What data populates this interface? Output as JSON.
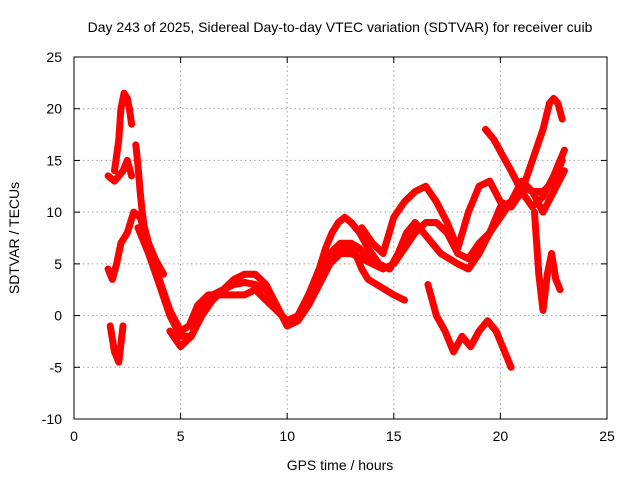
{
  "chart_data": {
    "type": "line",
    "title": "Day 243 of 2025, Sidereal Day-to-day VTEC variation (SDTVAR) for receiver cuib",
    "xlabel": "GPS time / hours",
    "ylabel": "SDTVAR / TECUs",
    "xlim": [
      0,
      25
    ],
    "ylim": [
      -10,
      25
    ],
    "xticks": [
      0,
      5,
      10,
      15,
      20,
      25
    ],
    "yticks": [
      -10,
      -5,
      0,
      5,
      10,
      15,
      20,
      25
    ],
    "grid": true,
    "color": "#ff0000",
    "series": [
      {
        "name": "s1",
        "x": [
          1.6,
          1.9,
          2.1,
          2.3,
          2.5,
          2.7
        ],
        "y": [
          13.5,
          13.0,
          13.5,
          14.0,
          15.0,
          13.5
        ]
      },
      {
        "name": "s2",
        "x": [
          1.9,
          2.1,
          2.2,
          2.35,
          2.5,
          2.6,
          2.7
        ],
        "y": [
          14.0,
          17.0,
          20.0,
          21.5,
          21.0,
          20.0,
          18.5
        ]
      },
      {
        "name": "s3",
        "x": [
          2.9,
          3.0,
          3.1,
          3.2,
          3.3,
          3.5,
          3.8,
          4.2
        ],
        "y": [
          16.5,
          14.5,
          12.0,
          10.0,
          8.5,
          7.0,
          5.5,
          4.0
        ]
      },
      {
        "name": "s4",
        "x": [
          1.6,
          1.8,
          2.0,
          2.2,
          2.5,
          2.8,
          3.1,
          3.5,
          4.0,
          4.5,
          5.0,
          5.4,
          5.8,
          6.3,
          7.0,
          7.6,
          8.0,
          8.5,
          9.0,
          9.5,
          10.0,
          10.5,
          11.0,
          11.5,
          12.0,
          12.5,
          13.0,
          13.4,
          13.8,
          14.2
        ],
        "y": [
          4.5,
          3.5,
          5.0,
          7.0,
          8.0,
          10.0,
          9.5,
          7.0,
          3.5,
          0.5,
          -1.5,
          -1.0,
          1.0,
          2.0,
          2.0,
          2.0,
          2.0,
          2.5,
          1.5,
          0.5,
          -0.5,
          0.0,
          1.5,
          3.5,
          6.0,
          7.0,
          7.0,
          6.5,
          5.5,
          5.0
        ]
      },
      {
        "name": "s5",
        "x": [
          3.0,
          3.5,
          4.0,
          4.5,
          5.0,
          5.5,
          6.0,
          6.5,
          7.0,
          7.5,
          8.0,
          8.5,
          9.0,
          9.5,
          10.0,
          10.5,
          11.0,
          11.5,
          12.0,
          12.3,
          12.6,
          12.9,
          13.2,
          13.5,
          13.8,
          14.2,
          14.6,
          15.0,
          15.5
        ],
        "y": [
          8.5,
          6.0,
          3.0,
          0.0,
          -2.0,
          -2.0,
          0.0,
          1.5,
          2.5,
          3.5,
          4.0,
          4.0,
          3.0,
          1.0,
          -1.0,
          -0.5,
          1.0,
          3.0,
          5.0,
          6.0,
          6.5,
          6.8,
          6.0,
          4.5,
          3.5,
          3.0,
          2.5,
          2.0,
          1.5
        ]
      },
      {
        "name": "s6",
        "x": [
          4.5,
          5.0,
          5.5,
          6.0,
          6.5,
          7.0,
          7.5,
          8.0,
          8.5,
          9.0,
          9.5,
          10.0,
          10.5,
          11.0,
          11.5,
          12.0,
          12.5,
          13.0,
          13.5,
          14.0,
          14.5,
          15.0,
          15.5,
          16.0,
          16.5,
          17.0,
          17.5,
          18.0,
          18.5,
          19.0,
          19.5,
          20.0,
          20.5,
          21.0,
          21.5,
          22.0,
          22.5,
          22.9
        ],
        "y": [
          -1.5,
          -3.0,
          -2.0,
          0.5,
          2.0,
          2.5,
          3.0,
          3.2,
          3.0,
          2.5,
          1.0,
          -1.0,
          -0.5,
          1.0,
          3.0,
          5.0,
          6.0,
          6.0,
          5.5,
          5.0,
          4.5,
          5.0,
          6.5,
          8.0,
          9.0,
          9.0,
          8.0,
          6.0,
          5.5,
          7.0,
          8.0,
          9.5,
          11.0,
          12.5,
          12.0,
          12.0,
          13.0,
          15.0
        ]
      },
      {
        "name": "s7",
        "x": [
          10.0,
          10.5,
          11.0,
          11.5,
          11.8,
          12.1,
          12.4,
          12.7,
          13.0,
          13.4,
          13.8,
          14.3,
          14.8,
          15.2,
          15.6,
          16.0,
          16.4,
          16.8,
          17.2,
          17.6,
          18.0,
          18.5,
          19.0,
          19.5,
          20.0,
          20.5,
          21.0,
          21.5,
          22.0,
          22.5,
          23.0
        ],
        "y": [
          -1.0,
          0.0,
          2.0,
          4.5,
          6.5,
          8.0,
          9.0,
          9.5,
          9.0,
          8.0,
          6.5,
          5.0,
          4.5,
          6.0,
          8.0,
          9.0,
          8.0,
          7.0,
          6.0,
          5.5,
          5.0,
          4.5,
          6.0,
          8.0,
          10.5,
          11.0,
          13.0,
          12.0,
          10.0,
          12.0,
          14.0
        ]
      },
      {
        "name": "s8",
        "x": [
          13.5,
          14.0,
          14.5,
          15.0,
          15.5,
          16.0,
          16.5,
          17.0,
          17.5,
          18.0,
          18.5,
          19.0,
          19.5,
          20.0,
          20.5,
          21.0,
          21.5,
          22.0,
          22.3,
          22.5,
          22.7,
          22.9
        ],
        "y": [
          8.5,
          7.0,
          6.0,
          9.5,
          11.0,
          12.0,
          12.5,
          11.0,
          9.0,
          6.5,
          10.0,
          12.5,
          13.0,
          11.0,
          10.5,
          12.0,
          15.0,
          18.0,
          20.5,
          21.0,
          20.5,
          19.0
        ]
      },
      {
        "name": "s9",
        "x": [
          19.3,
          19.7,
          20.1,
          20.5,
          21.0,
          21.5,
          22.0,
          22.5,
          23.0
        ],
        "y": [
          18.0,
          17.0,
          15.5,
          14.0,
          12.0,
          10.5,
          11.5,
          13.5,
          16.0
        ]
      },
      {
        "name": "s10",
        "x": [
          16.6,
          17.0,
          17.4,
          17.8,
          18.2,
          18.6,
          19.0,
          19.4,
          19.8,
          20.2,
          20.5
        ],
        "y": [
          3.0,
          0.0,
          -1.5,
          -3.5,
          -2.0,
          -3.0,
          -1.5,
          -0.5,
          -1.5,
          -3.5,
          -5.0
        ]
      },
      {
        "name": "s11",
        "x": [
          1.7,
          1.9,
          2.1,
          2.3
        ],
        "y": [
          -1.0,
          -3.5,
          -4.5,
          -1.0
        ]
      },
      {
        "name": "s12",
        "x": [
          21.6,
          21.8,
          22.0,
          22.2,
          22.4,
          22.6,
          22.8
        ],
        "y": [
          10.0,
          4.0,
          0.5,
          4.0,
          6.0,
          3.5,
          2.5
        ]
      }
    ]
  }
}
